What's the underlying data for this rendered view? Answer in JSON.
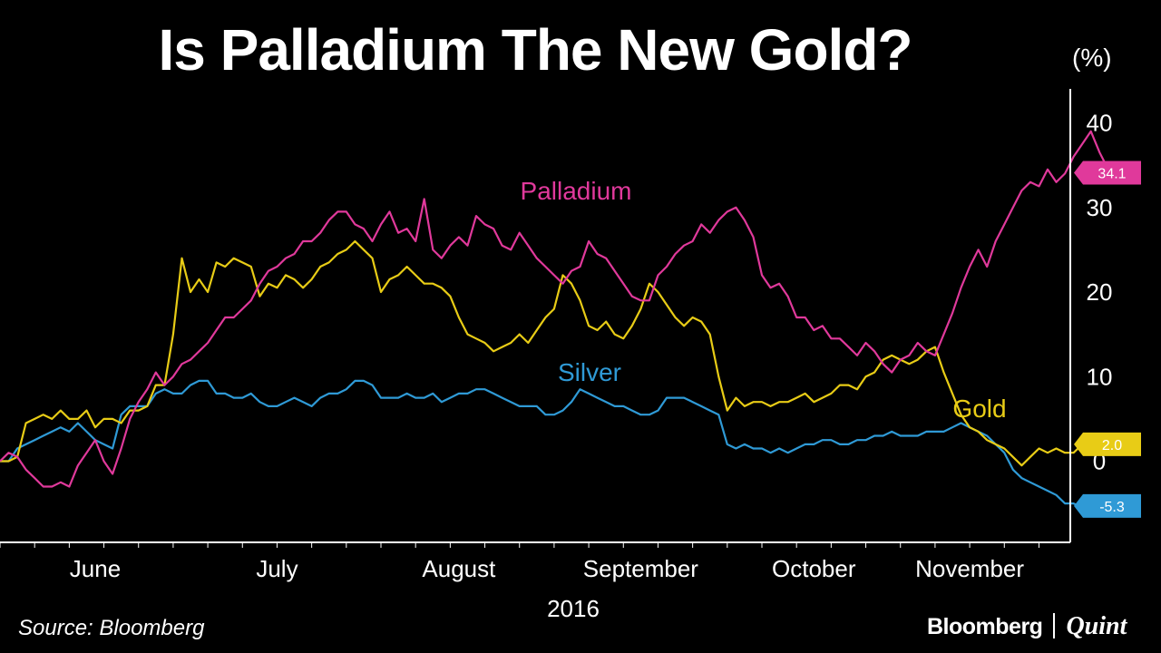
{
  "title": "Is Palladium The New Gold?",
  "unit": "(%)",
  "source": "Source: Bloomberg",
  "brand": {
    "primary": "Bloomberg",
    "secondary": "Quint"
  },
  "chart_data": {
    "type": "line",
    "title": "Is Palladium The New Gold?",
    "xlabel": "2016",
    "ylabel": "(%)",
    "ylim": [
      -9,
      44
    ],
    "y_ticks": [
      0,
      10,
      20,
      30,
      40
    ],
    "x_ticks": [
      "June",
      "July",
      "August",
      "September",
      "October",
      "November"
    ],
    "x_tick_positions": [
      11,
      32,
      53,
      74,
      94,
      112
    ],
    "x_count": 122,
    "grid": false,
    "series": [
      {
        "name": "Palladium",
        "color": "#e0399b",
        "end_label": "34.1",
        "values": [
          0,
          1,
          0.5,
          -1,
          -2,
          -3,
          -3,
          -2.5,
          -3,
          -0.5,
          1,
          2.5,
          0,
          -1.5,
          1.5,
          5,
          7,
          8.5,
          10.5,
          9,
          10,
          11.5,
          12,
          13,
          14,
          15.5,
          17,
          17,
          18,
          19,
          21,
          22.5,
          23,
          24,
          24.5,
          26,
          26,
          27,
          28.5,
          29.5,
          29.5,
          28,
          27.5,
          26,
          28,
          29.5,
          27,
          27.5,
          26,
          31,
          25,
          24,
          25.5,
          26.5,
          25.5,
          29,
          28,
          27.5,
          25.5,
          25,
          27,
          25.5,
          24,
          23,
          22,
          21,
          22.5,
          23,
          26,
          24.5,
          24,
          22.5,
          21,
          19.5,
          19,
          19,
          22,
          23,
          24.5,
          25.5,
          26,
          28,
          27,
          28.5,
          29.5,
          30,
          28.5,
          26.5,
          22,
          20.5,
          21,
          19.5,
          17,
          17,
          15.5,
          16,
          14.5,
          14.5,
          13.5,
          12.5,
          14,
          13,
          11.5,
          10.5,
          12,
          12.5,
          14,
          13,
          12.5,
          15,
          17.5,
          20.5,
          23,
          25,
          23,
          26,
          28,
          30,
          32,
          33,
          32.5,
          34.5,
          33,
          34,
          36,
          37.5,
          39,
          36.5,
          34.5,
          34.5,
          34.1
        ]
      },
      {
        "name": "Gold",
        "color": "#e8cc16",
        "end_label": "2.0",
        "values": [
          0,
          0,
          0.5,
          4.5,
          5,
          5.5,
          5,
          6,
          5,
          5,
          6,
          4,
          5,
          5,
          4.5,
          6,
          6,
          6.5,
          9,
          9,
          15,
          24,
          20,
          21.5,
          20,
          23.5,
          23,
          24,
          23.5,
          23,
          19.5,
          21,
          20.5,
          22,
          21.5,
          20.5,
          21.5,
          23,
          23.5,
          24.5,
          25,
          26,
          25,
          24,
          20,
          21.5,
          22,
          23,
          22,
          21,
          21,
          20.5,
          19.5,
          17,
          15,
          14.5,
          14,
          13,
          13.5,
          14,
          15,
          14,
          15.5,
          17,
          18,
          22,
          21,
          19,
          16,
          15.5,
          16.5,
          15,
          14.5,
          16,
          18,
          21,
          20,
          18.5,
          17,
          16,
          17,
          16.5,
          15,
          10,
          6,
          7.5,
          6.5,
          7,
          7,
          6.5,
          7,
          7,
          7.5,
          8,
          7,
          7.5,
          8,
          9,
          9,
          8.5,
          10,
          10.5,
          12,
          12.5,
          12,
          11.5,
          12,
          13,
          13.5,
          10.5,
          8,
          5.5,
          4,
          3.5,
          2.5,
          2,
          1.5,
          0.5,
          -0.5,
          0.5,
          1.5,
          1,
          1.5,
          1,
          1,
          2
        ]
      },
      {
        "name": "Silver",
        "color": "#2f9ad6",
        "end_label": "-5.3",
        "values": [
          0,
          0,
          1.5,
          2,
          2.5,
          3,
          3.5,
          4,
          3.5,
          4.5,
          3.5,
          2.5,
          2,
          1.5,
          5.5,
          6.5,
          6.5,
          6.5,
          8,
          8.5,
          8,
          8,
          9,
          9.5,
          9.5,
          8,
          8,
          7.5,
          7.5,
          8,
          7,
          6.5,
          6.5,
          7,
          7.5,
          7,
          6.5,
          7.5,
          8,
          8,
          8.5,
          9.5,
          9.5,
          9,
          7.5,
          7.5,
          7.5,
          8,
          7.5,
          7.5,
          8,
          7,
          7.5,
          8,
          8,
          8.5,
          8.5,
          8,
          7.5,
          7,
          6.5,
          6.5,
          6.5,
          5.5,
          5.5,
          6,
          7,
          8.5,
          8,
          7.5,
          7,
          6.5,
          6.5,
          6,
          5.5,
          5.5,
          6,
          7.5,
          7.5,
          7.5,
          7,
          6.5,
          6,
          5.5,
          2,
          1.5,
          2,
          1.5,
          1.5,
          1,
          1.5,
          1,
          1.5,
          2,
          2,
          2.5,
          2.5,
          2,
          2,
          2.5,
          2.5,
          3,
          3,
          3.5,
          3,
          3,
          3,
          3.5,
          3.5,
          3.5,
          4,
          4.5,
          4,
          3.5,
          3,
          2,
          1,
          -1,
          -2,
          -2.5,
          -3,
          -3.5,
          -4,
          -5,
          -5,
          -5.5,
          -6,
          -5.3
        ]
      }
    ],
    "annotations": [
      {
        "text": "Palladium",
        "series": "Palladium"
      },
      {
        "text": "Silver",
        "series": "Silver"
      },
      {
        "text": "Gold",
        "series": "Gold"
      }
    ]
  }
}
